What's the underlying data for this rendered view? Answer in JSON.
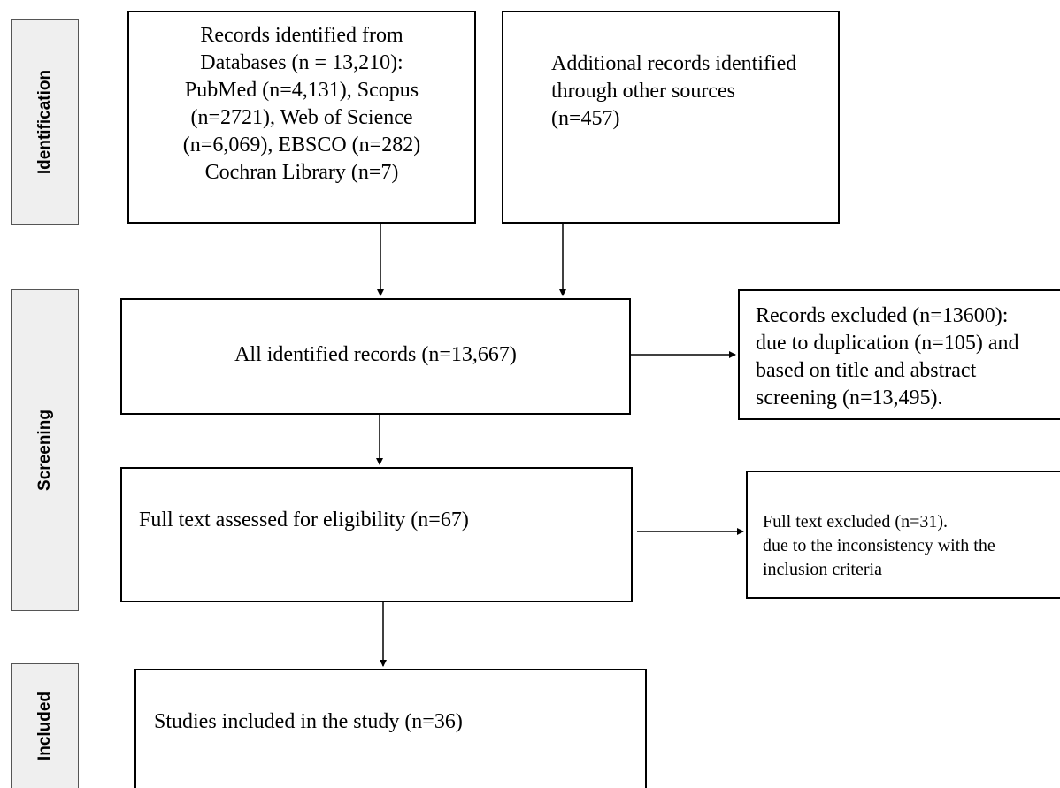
{
  "phases": {
    "identification": "Identification",
    "screening": "Screening",
    "included": "Included"
  },
  "boxes": {
    "databases": [
      "Records identified from",
      "Databases (n = 13,210):",
      "PubMed (n=4,131), Scopus",
      "(n=2721), Web of Science",
      "(n=6,069), EBSCO (n=282)",
      "Cochran Library (n=7)"
    ],
    "other_sources": [
      "Additional records identified",
      "through other sources",
      "(n=457)"
    ],
    "all_records": "All identified records (n=13,667)",
    "records_excluded": [
      "Records excluded (n=13600):",
      "due to duplication (n=105) and",
      "based on title and abstract",
      "screening (n=13,495)."
    ],
    "full_text": "Full text assessed for eligibility (n=67)",
    "full_text_excluded": [
      "Full text excluded (n=31).",
      "due to the inconsistency with the",
      "inclusion criteria"
    ],
    "included": "Studies included in the study (n=36)"
  }
}
